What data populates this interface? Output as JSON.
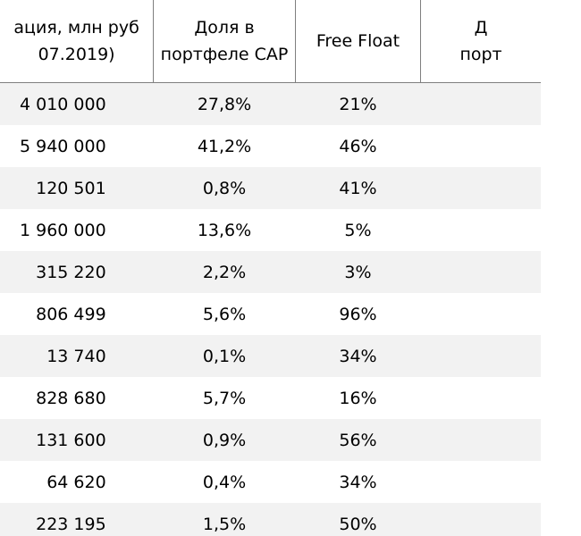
{
  "header": {
    "cap_line1": "ация, млн руб",
    "cap_line2": "07.2019)",
    "share_line1": "Доля в",
    "share_line2": "портфеле САР",
    "free_float": "Free Float",
    "next_line1": "Д",
    "next_line2": "порт"
  },
  "rows": [
    {
      "cap": "4 010 000",
      "share": "27,8%",
      "ff": "21%"
    },
    {
      "cap": "5 940 000",
      "share": "41,2%",
      "ff": "46%"
    },
    {
      "cap": "120 501",
      "share": "0,8%",
      "ff": "41%"
    },
    {
      "cap": "1 960 000",
      "share": "13,6%",
      "ff": "5%"
    },
    {
      "cap": "315 220",
      "share": "2,2%",
      "ff": "3%"
    },
    {
      "cap": "806 499",
      "share": "5,6%",
      "ff": "96%"
    },
    {
      "cap": "13 740",
      "share": "0,1%",
      "ff": "34%"
    },
    {
      "cap": "828 680",
      "share": "5,7%",
      "ff": "16%"
    },
    {
      "cap": "131 600",
      "share": "0,9%",
      "ff": "56%"
    },
    {
      "cap": "64 620",
      "share": "0,4%",
      "ff": "34%"
    },
    {
      "cap": "223 195",
      "share": "1,5%",
      "ff": "50%"
    }
  ]
}
